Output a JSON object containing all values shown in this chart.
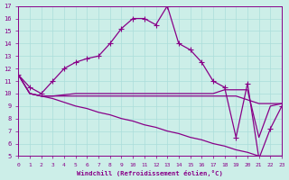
{
  "xlabel": "Windchill (Refroidissement éolien,°C)",
  "xlim": [
    0,
    23
  ],
  "ylim": [
    5,
    17
  ],
  "xticks": [
    0,
    1,
    2,
    3,
    4,
    5,
    6,
    7,
    8,
    9,
    10,
    11,
    12,
    13,
    14,
    15,
    16,
    17,
    18,
    19,
    20,
    21,
    22,
    23
  ],
  "yticks": [
    5,
    6,
    7,
    8,
    9,
    10,
    11,
    12,
    13,
    14,
    15,
    16,
    17
  ],
  "bg_color": "#cceee8",
  "grid_color": "#aaddda",
  "line_color": "#880088",
  "curve1_x": [
    0,
    1,
    2,
    3,
    4,
    5,
    6,
    7,
    8,
    9,
    10,
    11,
    12,
    13,
    14,
    15,
    16,
    17,
    18,
    19,
    20,
    21,
    22,
    23
  ],
  "curve1_y": [
    11.5,
    10.5,
    10.0,
    11.0,
    12.0,
    12.5,
    12.8,
    13.0,
    14.0,
    15.2,
    16.0,
    16.0,
    15.5,
    17.0,
    14.0,
    13.5,
    12.5,
    11.0,
    10.5,
    6.5,
    10.8,
    4.8,
    7.2,
    9.0
  ],
  "curve2_x": [
    0,
    1,
    2,
    3,
    4,
    5,
    6,
    7,
    8,
    9,
    10,
    11,
    12,
    13,
    14,
    15,
    16,
    17,
    18,
    19,
    20,
    21,
    22,
    23
  ],
  "curve2_y": [
    11.5,
    10.0,
    9.8,
    9.6,
    9.3,
    9.0,
    8.8,
    8.5,
    8.3,
    8.0,
    7.8,
    7.5,
    7.3,
    7.0,
    6.8,
    6.5,
    6.3,
    6.0,
    5.8,
    5.5,
    5.3,
    5.0,
    5.0,
    5.0
  ],
  "curve3_x": [
    0,
    1,
    2,
    3,
    4,
    5,
    6,
    7,
    8,
    9,
    10,
    11,
    12,
    13,
    14,
    15,
    16,
    17,
    18,
    19,
    20,
    21,
    22,
    23
  ],
  "curve3_y": [
    11.5,
    10.0,
    9.8,
    9.8,
    9.9,
    10.0,
    10.0,
    10.0,
    10.0,
    10.0,
    10.0,
    10.0,
    10.0,
    10.0,
    10.0,
    10.0,
    10.0,
    10.0,
    10.3,
    10.3,
    10.3,
    6.5,
    9.0,
    9.2
  ],
  "curve4_x": [
    0,
    1,
    2,
    3,
    4,
    5,
    6,
    7,
    8,
    9,
    10,
    11,
    12,
    13,
    14,
    15,
    16,
    17,
    18,
    19,
    20,
    21,
    22,
    23
  ],
  "curve4_y": [
    11.5,
    10.0,
    9.8,
    9.8,
    9.8,
    9.8,
    9.8,
    9.8,
    9.8,
    9.8,
    9.8,
    9.8,
    9.8,
    9.8,
    9.8,
    9.8,
    9.8,
    9.8,
    9.8,
    9.8,
    9.5,
    9.2,
    9.2,
    9.2
  ]
}
